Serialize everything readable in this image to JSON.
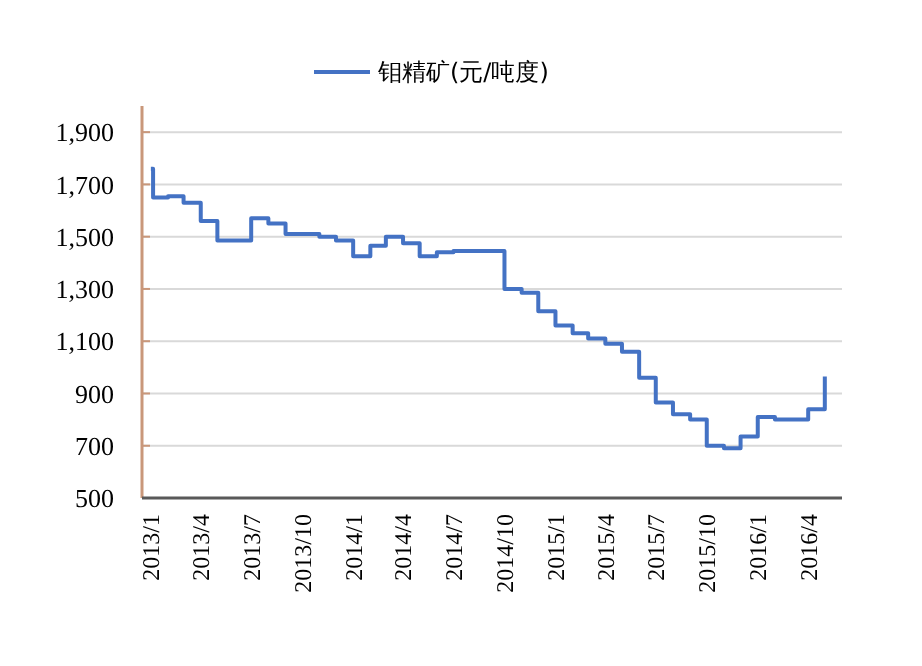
{
  "chart_data": {
    "type": "step",
    "x": [
      "2013-01-01",
      "2013-01-05",
      "2013-02-01",
      "2013-03-01",
      "2013-04-01",
      "2013-05-01",
      "2013-06-01",
      "2013-07-01",
      "2013-08-01",
      "2013-09-01",
      "2013-10-01",
      "2013-11-01",
      "2013-12-01",
      "2014-01-01",
      "2014-02-01",
      "2014-03-01",
      "2014-04-01",
      "2014-05-01",
      "2014-06-01",
      "2014-07-01",
      "2014-08-01",
      "2014-09-01",
      "2014-10-01",
      "2014-11-01",
      "2014-12-01",
      "2015-01-01",
      "2015-02-01",
      "2015-03-01",
      "2015-04-01",
      "2015-05-01",
      "2015-06-01",
      "2015-07-01",
      "2015-08-01",
      "2015-09-01",
      "2015-10-01",
      "2015-11-01",
      "2015-12-01",
      "2016-01-01",
      "2016-02-01",
      "2016-03-01",
      "2016-04-01",
      "2016-05-01"
    ],
    "series": [
      {
        "name": "钼精矿(元/吨度)",
        "color": "#4472c4",
        "values": [
          1760,
          1650,
          1655,
          1630,
          1560,
          1485,
          1485,
          1570,
          1550,
          1510,
          1510,
          1500,
          1485,
          1425,
          1465,
          1500,
          1475,
          1425,
          1440,
          1445,
          1445,
          1445,
          1300,
          1285,
          1215,
          1160,
          1130,
          1110,
          1090,
          1060,
          960,
          865,
          820,
          800,
          700,
          690,
          735,
          810,
          800,
          800,
          840,
          965
        ]
      }
    ],
    "xlim": [
      "2012-12-16",
      "2016-06-01"
    ],
    "xticks": [
      {
        "value": "2013-01-01",
        "label": "2013/1"
      },
      {
        "value": "2013-04-01",
        "label": "2013/4"
      },
      {
        "value": "2013-07-01",
        "label": "2013/7"
      },
      {
        "value": "2013-10-01",
        "label": "2013/10"
      },
      {
        "value": "2014-01-01",
        "label": "2014/1"
      },
      {
        "value": "2014-04-01",
        "label": "2014/4"
      },
      {
        "value": "2014-07-01",
        "label": "2014/7"
      },
      {
        "value": "2014-10-01",
        "label": "2014/10"
      },
      {
        "value": "2015-01-01",
        "label": "2015/1"
      },
      {
        "value": "2015-04-01",
        "label": "2015/4"
      },
      {
        "value": "2015-07-01",
        "label": "2015/7"
      },
      {
        "value": "2015-10-01",
        "label": "2015/10"
      },
      {
        "value": "2016-01-01",
        "label": "2016/1"
      },
      {
        "value": "2016-04-01",
        "label": "2016/4"
      }
    ],
    "ylim": [
      500,
      2000
    ],
    "yticks": [
      {
        "value": 500,
        "label": "500"
      },
      {
        "value": 700,
        "label": "700"
      },
      {
        "value": 900,
        "label": "900"
      },
      {
        "value": 1100,
        "label": "1,100"
      },
      {
        "value": 1300,
        "label": "1,300"
      },
      {
        "value": 1500,
        "label": "1,500"
      },
      {
        "value": 1700,
        "label": "1,700"
      },
      {
        "value": 1900,
        "label": "1,900"
      }
    ],
    "grid": "y",
    "legend": "top",
    "marker": "none",
    "line_style": "solid"
  }
}
